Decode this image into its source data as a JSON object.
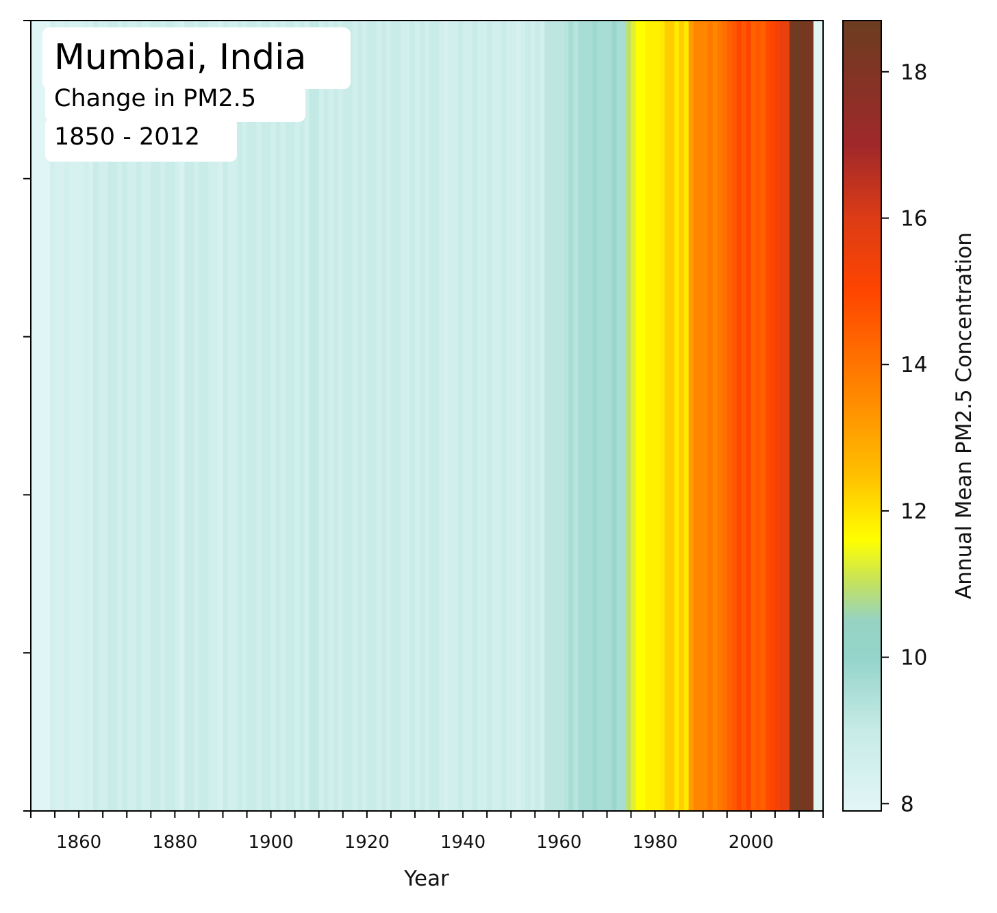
{
  "chart_data": {
    "type": "heatmap",
    "title": "Mumbai, India",
    "subtitle_lines": [
      "Change in PM2.5",
      "1850 - 2012"
    ],
    "xlabel": "Year",
    "ylabel": "",
    "colorbar_label": "Annual Mean PM2.5 Concentration",
    "xlim": [
      1850,
      2015
    ],
    "x_ticks": [
      1860,
      1880,
      1900,
      1920,
      1940,
      1960,
      1980,
      2000
    ],
    "colorbar_range": [
      7.9,
      18.7
    ],
    "colorbar_ticks": [
      8,
      10,
      12,
      14,
      16,
      18
    ],
    "colormap": [
      {
        "v": 7.9,
        "color": "#e2f6f6"
      },
      {
        "v": 9.0,
        "color": "#c7ebe7"
      },
      {
        "v": 10.0,
        "color": "#94d4ca"
      },
      {
        "v": 10.5,
        "color": "#96d3c3"
      },
      {
        "v": 11.0,
        "color": "#c2e162"
      },
      {
        "v": 11.6,
        "color": "#ffff00"
      },
      {
        "v": 12.5,
        "color": "#ffbf00"
      },
      {
        "v": 13.5,
        "color": "#ff8c00"
      },
      {
        "v": 15.0,
        "color": "#ff4500"
      },
      {
        "v": 16.0,
        "color": "#dc3c16"
      },
      {
        "v": 17.0,
        "color": "#a0282a"
      },
      {
        "v": 18.7,
        "color": "#6b3d20"
      }
    ],
    "years": [
      1850,
      1851,
      1852,
      1853,
      1854,
      1855,
      1856,
      1857,
      1858,
      1859,
      1860,
      1861,
      1862,
      1863,
      1864,
      1865,
      1866,
      1867,
      1868,
      1869,
      1870,
      1871,
      1872,
      1873,
      1874,
      1875,
      1876,
      1877,
      1878,
      1879,
      1880,
      1881,
      1882,
      1883,
      1884,
      1885,
      1886,
      1887,
      1888,
      1889,
      1890,
      1891,
      1892,
      1893,
      1894,
      1895,
      1896,
      1897,
      1898,
      1899,
      1900,
      1901,
      1902,
      1903,
      1904,
      1905,
      1906,
      1907,
      1908,
      1909,
      1910,
      1911,
      1912,
      1913,
      1914,
      1915,
      1916,
      1917,
      1918,
      1919,
      1920,
      1921,
      1922,
      1923,
      1924,
      1925,
      1926,
      1927,
      1928,
      1929,
      1930,
      1931,
      1932,
      1933,
      1934,
      1935,
      1936,
      1937,
      1938,
      1939,
      1940,
      1941,
      1942,
      1943,
      1944,
      1945,
      1946,
      1947,
      1948,
      1949,
      1950,
      1951,
      1952,
      1953,
      1954,
      1955,
      1956,
      1957,
      1958,
      1959,
      1960,
      1961,
      1962,
      1963,
      1964,
      1965,
      1966,
      1967,
      1968,
      1969,
      1970,
      1971,
      1972,
      1973,
      1974,
      1975,
      1976,
      1977,
      1978,
      1979,
      1980,
      1981,
      1982,
      1983,
      1984,
      1985,
      1986,
      1987,
      1988,
      1989,
      1990,
      1991,
      1992,
      1993,
      1994,
      1995,
      1996,
      1997,
      1998,
      1999,
      2000,
      2001,
      2002,
      2003,
      2004,
      2005,
      2006,
      2007,
      2008,
      2009,
      2010,
      2011,
      2012,
      2013,
      2014
    ],
    "values": [
      8.0,
      8.0,
      8.0,
      8.0,
      8.6,
      8.4,
      8.4,
      8.6,
      8.4,
      8.4,
      8.4,
      8.6,
      8.4,
      8.9,
      8.6,
      8.6,
      8.9,
      8.9,
      8.6,
      8.9,
      8.6,
      8.6,
      8.9,
      8.6,
      8.6,
      8.9,
      8.9,
      8.6,
      8.9,
      8.9,
      8.6,
      8.3,
      8.9,
      8.9,
      8.6,
      8.9,
      8.9,
      8.6,
      8.6,
      8.4,
      8.9,
      8.6,
      8.6,
      8.9,
      8.6,
      8.9,
      8.9,
      8.6,
      8.9,
      8.9,
      8.6,
      8.9,
      8.6,
      8.9,
      8.9,
      8.6,
      8.9,
      8.6,
      9.1,
      9.1,
      8.6,
      8.9,
      8.6,
      8.9,
      8.6,
      8.9,
      8.9,
      8.6,
      8.9,
      8.6,
      8.9,
      8.9,
      8.6,
      8.9,
      8.6,
      8.9,
      8.9,
      8.6,
      8.6,
      8.9,
      8.6,
      8.9,
      8.6,
      8.9,
      8.9,
      8.6,
      8.4,
      8.6,
      8.6,
      8.9,
      8.6,
      8.6,
      8.9,
      8.6,
      8.6,
      8.9,
      8.6,
      8.6,
      8.9,
      8.6,
      8.6,
      8.4,
      8.6,
      8.9,
      8.6,
      8.9,
      8.6,
      9.2,
      9.2,
      9.2,
      9.2,
      9.3,
      9.6,
      9.3,
      9.6,
      9.6,
      9.6,
      9.8,
      9.6,
      9.6,
      9.6,
      9.9,
      9.6,
      9.6,
      11.0,
      11.3,
      11.6,
      11.6,
      11.8,
      11.8,
      11.8,
      11.9,
      12.3,
      12.3,
      11.9,
      12.3,
      11.9,
      13.2,
      13.6,
      13.6,
      13.6,
      13.9,
      13.6,
      13.9,
      14.1,
      14.4,
      14.6,
      15.0,
      14.6,
      15.0,
      14.4,
      14.6,
      14.4,
      14.9,
      15.0,
      15.3,
      15.6,
      15.6,
      18.3,
      18.6,
      18.3,
      18.3,
      18.3
    ]
  }
}
